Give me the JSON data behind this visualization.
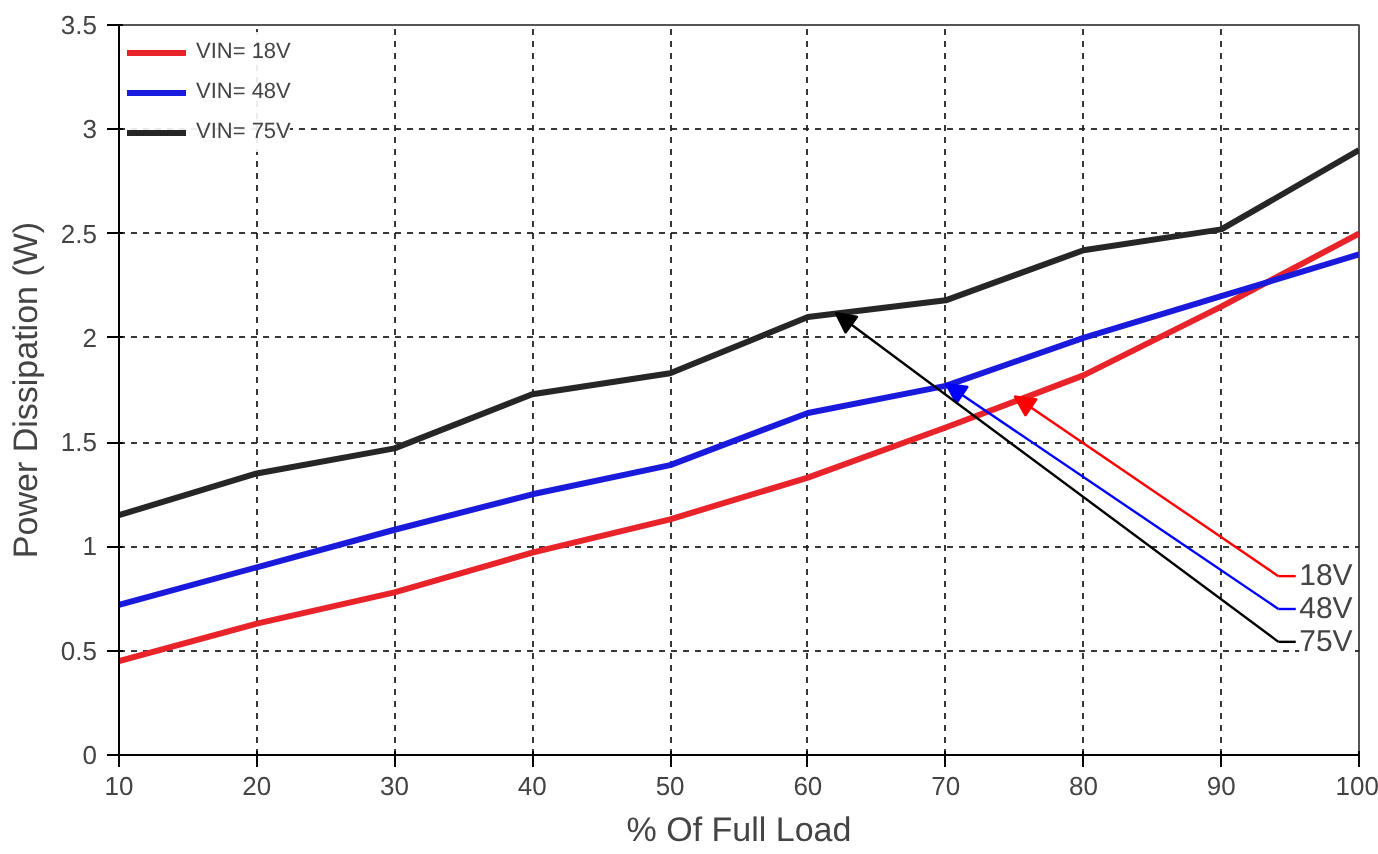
{
  "chart_data": {
    "type": "line",
    "xlabel": "% Of Full Load",
    "ylabel": "Power Dissipation (W)",
    "x": [
      10,
      20,
      30,
      40,
      50,
      60,
      70,
      80,
      90,
      100
    ],
    "series": [
      {
        "name": "VIN= 18V",
        "color": "#e8232a",
        "values": [
          0.45,
          0.63,
          0.78,
          0.97,
          1.13,
          1.33,
          1.57,
          1.82,
          2.15,
          2.5
        ]
      },
      {
        "name": "VIN= 48V",
        "color": "#1a1adc",
        "values": [
          0.72,
          0.9,
          1.08,
          1.25,
          1.39,
          1.64,
          1.77,
          2.0,
          2.2,
          2.4
        ]
      },
      {
        "name": "VIN= 75V",
        "color": "#262626",
        "values": [
          1.15,
          1.35,
          1.47,
          1.73,
          1.83,
          2.1,
          2.18,
          2.42,
          2.52,
          2.9
        ]
      }
    ],
    "annotations": [
      {
        "text": "18V",
        "x": 75,
        "y": 1.72
      },
      {
        "text": "48V",
        "x": 70,
        "y": 1.78
      },
      {
        "text": "75V",
        "x": 62,
        "y": 2.12
      }
    ],
    "xlim": [
      10,
      100
    ],
    "ylim": [
      0,
      3.5
    ],
    "xticks": [
      10,
      20,
      30,
      40,
      50,
      60,
      70,
      80,
      90,
      100
    ],
    "yticks": [
      0,
      0.5,
      1,
      1.5,
      2,
      2.5,
      3,
      3.5
    ],
    "grid": true,
    "legend": "top left",
    "line_style": "solid"
  }
}
